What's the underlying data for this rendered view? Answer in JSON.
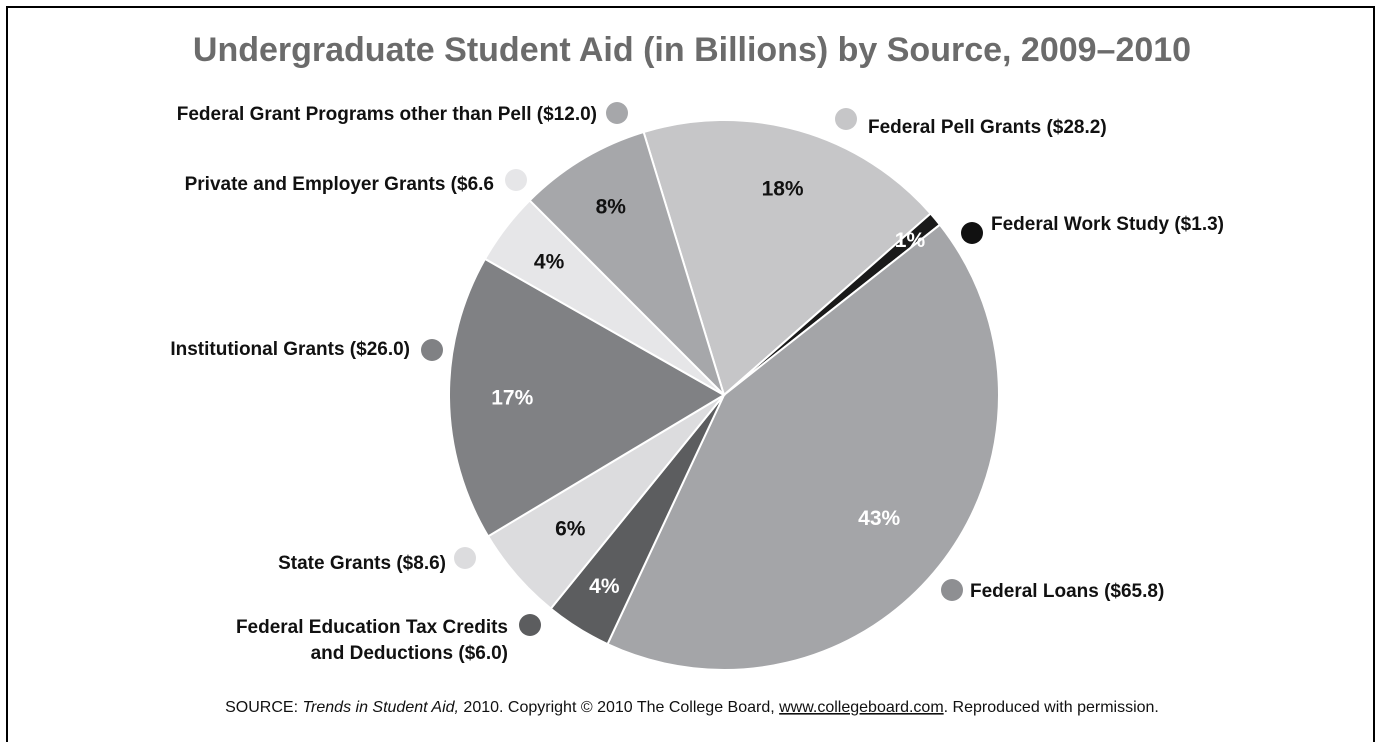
{
  "chart_data": {
    "type": "pie",
    "title": "Undergraduate Student Aid (in Billions) by Source, 2009–2010",
    "slices": [
      {
        "label": "Federal Pell Grants ($28.2)",
        "value": 28.2,
        "pct_label": "18%",
        "color": "#c6c6c8",
        "dot_color": "#c6c6c8",
        "pct_color": "#111111"
      },
      {
        "label": "Federal Work Study ($1.3)",
        "value": 1.3,
        "pct_label": "1%",
        "color": "#1a1a1a",
        "dot_color": "#111111",
        "pct_color": "#ffffff"
      },
      {
        "label": "Federal Loans ($65.8)",
        "value": 65.8,
        "pct_label": "43%",
        "color": "#a4a5a8",
        "dot_color": "#8e8f92",
        "pct_color": "#ffffff"
      },
      {
        "label": "Federal Education Tax Credits",
        "label_line2": "and Deductions ($6.0)",
        "value": 6.0,
        "pct_label": "4%",
        "color": "#5c5d5f",
        "dot_color": "#5c5d5f",
        "pct_color": "#ffffff"
      },
      {
        "label": "State Grants ($8.6)",
        "value": 8.6,
        "pct_label": "6%",
        "color": "#dcdcde",
        "dot_color": "#dcdcde",
        "pct_color": "#111111"
      },
      {
        "label": "Institutional Grants ($26.0)",
        "value": 26.0,
        "pct_label": "17%",
        "color": "#808184",
        "dot_color": "#808184",
        "pct_color": "#ffffff"
      },
      {
        "label": "Private and Employer Grants ($6.6",
        "value": 6.6,
        "pct_label": "4%",
        "color": "#e6e6e8",
        "dot_color": "#e6e6e8",
        "pct_color": "#111111"
      },
      {
        "label": "Federal Grant Programs other than Pell ($12.0)",
        "value": 12.0,
        "pct_label": "8%",
        "color": "#a6a7aa",
        "dot_color": "#a6a7aa",
        "pct_color": "#111111"
      }
    ]
  },
  "source": {
    "prefix": "SOURCE: ",
    "italic": "Trends in Student Aid,",
    "middle": " 2010. Copyright © 2010 The College Board, ",
    "link": "www.collegeboard.com",
    "suffix": ". Reproduced with permission."
  }
}
